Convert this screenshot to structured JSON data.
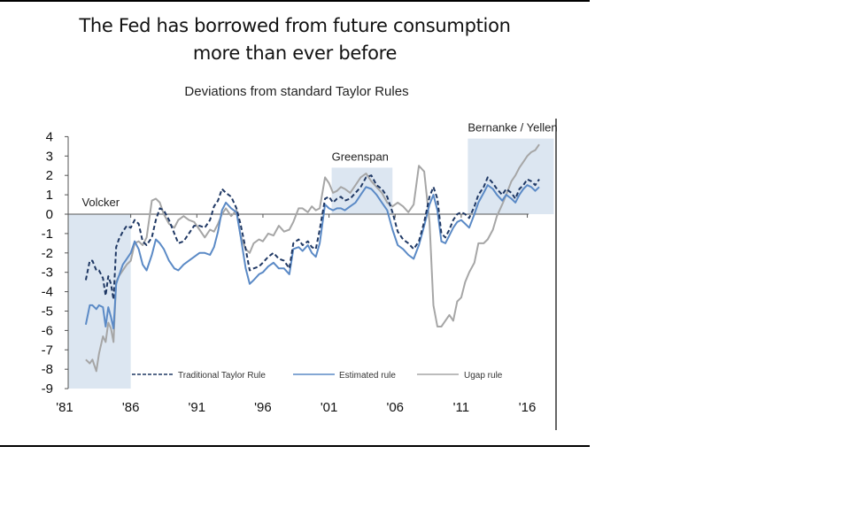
{
  "headline": {
    "line1": "The Fed has borrowed from future consumption",
    "line2": "more than ever before"
  },
  "colors": {
    "traditional": "#1f3864",
    "estimated": "#5b8ac6",
    "ugap": "#a6a6a6",
    "shade": "#dce6f1",
    "axis": "#555555"
  },
  "chart_data": {
    "type": "line",
    "title": "Deviations from standard Taylor Rules",
    "xlabel": "",
    "ylabel": "",
    "xlim": [
      1981,
      2018
    ],
    "ylim": [
      -9,
      4
    ],
    "yticks": [
      4,
      3,
      2,
      1,
      0,
      -1,
      -2,
      -3,
      -4,
      -5,
      -6,
      -7,
      -8,
      -9
    ],
    "ytick_labels": [
      "4",
      "3",
      "2",
      "1",
      "0",
      "-1",
      "-2",
      "-3",
      "-4",
      "-5",
      "-6",
      "-7",
      "-8",
      "-9"
    ],
    "xticks": [
      1981,
      1986,
      1991,
      1996,
      2001,
      2006,
      2011,
      2016
    ],
    "xtick_labels": [
      "'81",
      "'86",
      "'91",
      "'96",
      "'01",
      "'06",
      "'11",
      "'16"
    ],
    "grid": false,
    "legend": "bottom",
    "shaded_periods": [
      {
        "label": "Volcker",
        "x": [
          1981.3,
          1986.0
        ],
        "y": [
          -9,
          0
        ]
      },
      {
        "label": "Greenspan",
        "x": [
          2001.2,
          2005.8
        ],
        "y": [
          0,
          2.4
        ]
      },
      {
        "label": "Bernanke / Yellen",
        "x": [
          2011.5,
          2018.0
        ],
        "y": [
          0,
          3.9
        ]
      }
    ],
    "series": [
      {
        "name": "Traditional Taylor Rule",
        "style": "dashed",
        "x": [
          1982.6,
          1982.9,
          1983.1,
          1983.4,
          1983.6,
          1983.9,
          1984.1,
          1984.3,
          1984.5,
          1984.7,
          1984.9,
          1985.1,
          1985.4,
          1985.7,
          1986.0,
          1986.3,
          1986.6,
          1986.9,
          1987.2,
          1987.6,
          1987.9,
          1988.2,
          1988.5,
          1988.9,
          1989.3,
          1989.6,
          1990.0,
          1990.4,
          1990.8,
          1991.2,
          1991.6,
          1992.0,
          1992.3,
          1992.6,
          1992.9,
          1993.2,
          1993.6,
          1994.0,
          1994.3,
          1994.7,
          1995.0,
          1995.3,
          1995.7,
          1996.0,
          1996.4,
          1996.8,
          1997.2,
          1997.6,
          1998.0,
          1998.3,
          1998.7,
          1999.0,
          1999.4,
          1999.7,
          2000.0,
          2000.3,
          2000.7,
          2001.0,
          2001.3,
          2001.6,
          2001.9,
          2002.2,
          2002.6,
          2003.0,
          2003.4,
          2003.8,
          2004.2,
          2004.6,
          2005.0,
          2005.4,
          2005.8,
          2006.2,
          2006.6,
          2007.0,
          2007.4,
          2007.8,
          2008.2,
          2008.6,
          2008.9,
          2009.2,
          2009.5,
          2009.8,
          2010.1,
          2010.4,
          2010.7,
          2011.0,
          2011.3,
          2011.6,
          2012.0,
          2012.3,
          2012.7,
          2013.0,
          2013.4,
          2013.7,
          2014.1,
          2014.4,
          2014.8,
          2015.1,
          2015.4,
          2015.7,
          2016.0,
          2016.3,
          2016.6,
          2016.9
        ],
        "values": [
          -3.4,
          -2.4,
          -2.4,
          -2.9,
          -2.9,
          -3.3,
          -4.2,
          -3.2,
          -3.6,
          -4.4,
          -1.7,
          -1.3,
          -0.9,
          -0.6,
          -0.7,
          -0.3,
          -0.5,
          -1.4,
          -1.6,
          -1.2,
          -0.3,
          0.3,
          0.2,
          -0.3,
          -1.0,
          -1.5,
          -1.4,
          -1.0,
          -0.6,
          -0.6,
          -0.7,
          -0.3,
          0.4,
          0.7,
          1.3,
          1.1,
          0.9,
          0.3,
          -0.5,
          -1.8,
          -2.9,
          -2.8,
          -2.7,
          -2.5,
          -2.2,
          -2.0,
          -2.3,
          -2.4,
          -2.8,
          -1.5,
          -1.3,
          -1.6,
          -1.4,
          -1.7,
          -1.8,
          -0.8,
          0.8,
          0.9,
          0.6,
          0.8,
          0.9,
          0.7,
          0.8,
          1.1,
          1.4,
          1.9,
          2.0,
          1.5,
          1.3,
          0.9,
          0.1,
          -0.9,
          -1.3,
          -1.5,
          -1.8,
          -1.4,
          -0.4,
          0.9,
          1.4,
          0.8,
          -1.0,
          -1.2,
          -0.8,
          -0.3,
          0.0,
          0.1,
          0.0,
          -0.2,
          0.4,
          1.0,
          1.4,
          1.9,
          1.6,
          1.3,
          1.0,
          1.3,
          1.1,
          0.8,
          1.3,
          1.5,
          1.8,
          1.7,
          1.5,
          1.8
        ]
      },
      {
        "name": "Estimated rule",
        "style": "solid",
        "x": [
          1982.6,
          1982.9,
          1983.1,
          1983.4,
          1983.6,
          1983.9,
          1984.1,
          1984.3,
          1984.5,
          1984.7,
          1984.9,
          1985.1,
          1985.4,
          1985.7,
          1986.0,
          1986.3,
          1986.6,
          1986.9,
          1987.2,
          1987.6,
          1987.9,
          1988.2,
          1988.5,
          1988.9,
          1989.3,
          1989.6,
          1990.0,
          1990.4,
          1990.8,
          1991.2,
          1991.6,
          1992.0,
          1992.3,
          1992.6,
          1992.9,
          1993.2,
          1993.6,
          1994.0,
          1994.3,
          1994.7,
          1995.0,
          1995.3,
          1995.7,
          1996.0,
          1996.4,
          1996.8,
          1997.2,
          1997.6,
          1998.0,
          1998.3,
          1998.7,
          1999.0,
          1999.4,
          1999.7,
          2000.0,
          2000.3,
          2000.7,
          2001.0,
          2001.3,
          2001.6,
          2001.9,
          2002.2,
          2002.6,
          2003.0,
          2003.4,
          2003.8,
          2004.2,
          2004.6,
          2005.0,
          2005.4,
          2005.8,
          2006.2,
          2006.6,
          2007.0,
          2007.4,
          2007.8,
          2008.2,
          2008.6,
          2008.9,
          2009.2,
          2009.5,
          2009.8,
          2010.1,
          2010.4,
          2010.7,
          2011.0,
          2011.3,
          2011.6,
          2012.0,
          2012.3,
          2012.7,
          2013.0,
          2013.4,
          2013.7,
          2014.1,
          2014.4,
          2014.8,
          2015.1,
          2015.4,
          2015.7,
          2016.0,
          2016.3,
          2016.6,
          2016.9
        ],
        "values": [
          -5.7,
          -4.7,
          -4.7,
          -4.9,
          -4.7,
          -4.8,
          -5.8,
          -4.8,
          -5.3,
          -5.9,
          -3.6,
          -3.2,
          -2.6,
          -2.3,
          -2.0,
          -1.4,
          -1.8,
          -2.6,
          -2.9,
          -2.1,
          -1.3,
          -1.5,
          -1.8,
          -2.4,
          -2.8,
          -2.9,
          -2.6,
          -2.4,
          -2.2,
          -2.0,
          -2.0,
          -2.1,
          -1.7,
          -0.9,
          0.2,
          0.6,
          0.3,
          0.1,
          -1.1,
          -2.8,
          -3.6,
          -3.4,
          -3.1,
          -3.0,
          -2.7,
          -2.5,
          -2.8,
          -2.8,
          -3.1,
          -1.8,
          -1.7,
          -1.9,
          -1.6,
          -2.0,
          -2.2,
          -1.5,
          0.5,
          0.3,
          0.2,
          0.3,
          0.3,
          0.2,
          0.4,
          0.6,
          1.0,
          1.4,
          1.3,
          1.0,
          0.6,
          0.2,
          -0.8,
          -1.6,
          -1.8,
          -2.1,
          -2.3,
          -1.6,
          -0.6,
          0.5,
          1.0,
          0.2,
          -1.4,
          -1.5,
          -1.1,
          -0.7,
          -0.4,
          -0.3,
          -0.5,
          -0.7,
          0.0,
          0.6,
          1.1,
          1.5,
          1.3,
          1.0,
          0.7,
          1.0,
          0.8,
          0.6,
          1.0,
          1.3,
          1.5,
          1.4,
          1.2,
          1.4
        ]
      },
      {
        "name": "Ugap rule",
        "style": "solid",
        "x": [
          1982.6,
          1982.9,
          1983.1,
          1983.4,
          1983.6,
          1983.9,
          1984.1,
          1984.3,
          1984.5,
          1984.7,
          1984.9,
          1985.1,
          1985.4,
          1985.7,
          1986.0,
          1986.3,
          1986.6,
          1986.9,
          1987.2,
          1987.6,
          1987.9,
          1988.2,
          1988.5,
          1988.9,
          1989.3,
          1989.6,
          1990.0,
          1990.4,
          1990.8,
          1991.2,
          1991.6,
          1992.0,
          1992.3,
          1992.6,
          1992.9,
          1993.2,
          1993.6,
          1994.0,
          1994.3,
          1994.7,
          1995.0,
          1995.3,
          1995.7,
          1996.0,
          1996.4,
          1996.8,
          1997.2,
          1997.6,
          1998.0,
          1998.3,
          1998.7,
          1999.0,
          1999.4,
          1999.7,
          2000.0,
          2000.3,
          2000.7,
          2001.0,
          2001.3,
          2001.6,
          2001.9,
          2002.2,
          2002.6,
          2003.0,
          2003.4,
          2003.8,
          2004.2,
          2004.6,
          2005.0,
          2005.4,
          2005.8,
          2006.2,
          2006.6,
          2007.0,
          2007.4,
          2007.8,
          2008.2,
          2008.6,
          2008.9,
          2009.2,
          2009.5,
          2009.8,
          2010.1,
          2010.4,
          2010.7,
          2011.0,
          2011.3,
          2011.6,
          2012.0,
          2012.3,
          2012.7,
          2013.0,
          2013.4,
          2013.7,
          2014.1,
          2014.4,
          2014.8,
          2015.1,
          2015.4,
          2015.7,
          2016.0,
          2016.3,
          2016.6,
          2016.9
        ],
        "values": [
          -7.5,
          -7.7,
          -7.5,
          -8.1,
          -7.2,
          -6.3,
          -6.6,
          -5.6,
          -5.9,
          -6.6,
          -3.5,
          -3.2,
          -2.9,
          -2.6,
          -2.4,
          -1.5,
          -1.4,
          -1.6,
          -1.2,
          0.7,
          0.8,
          0.6,
          0.0,
          -0.5,
          -0.7,
          -0.3,
          -0.1,
          -0.3,
          -0.4,
          -0.8,
          -1.2,
          -0.8,
          -0.9,
          -0.5,
          0.0,
          0.3,
          -0.1,
          0.2,
          -1.1,
          -1.8,
          -2.0,
          -1.5,
          -1.3,
          -1.4,
          -1.0,
          -1.1,
          -0.6,
          -0.9,
          -0.8,
          -0.4,
          0.3,
          0.3,
          0.1,
          0.4,
          0.2,
          0.3,
          1.9,
          1.6,
          1.1,
          1.2,
          1.4,
          1.3,
          1.1,
          1.5,
          1.9,
          2.1,
          1.7,
          1.4,
          1.1,
          0.6,
          0.4,
          0.6,
          0.4,
          0.1,
          0.5,
          2.5,
          2.2,
          -0.4,
          -4.7,
          -5.8,
          -5.8,
          -5.5,
          -5.2,
          -5.5,
          -4.5,
          -4.3,
          -3.5,
          -3.0,
          -2.5,
          -1.5,
          -1.5,
          -1.3,
          -0.8,
          -0.1,
          0.5,
          1.0,
          1.7,
          2.0,
          2.4,
          2.7,
          3.0,
          3.2,
          3.3,
          3.6
        ]
      }
    ]
  }
}
